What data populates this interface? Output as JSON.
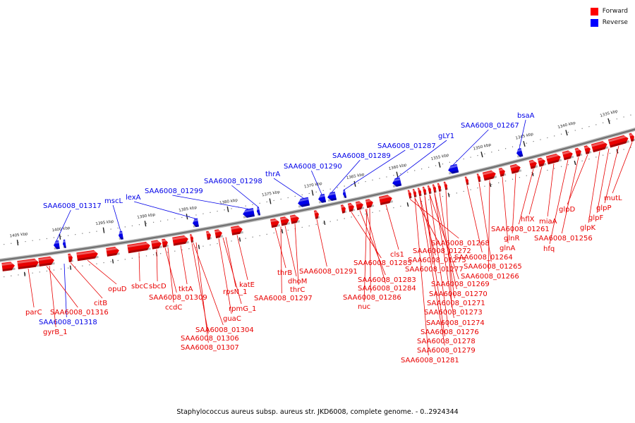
{
  "caption": "Staphylococcus aureus subsp. aureus str. JKD6008, complete genome. - 0..2924344",
  "legend": [
    {
      "label": "Forward",
      "color": "#ff0000"
    },
    {
      "label": "Reverse",
      "color": "#0000ff"
    }
  ],
  "colors": {
    "forward": "#e80000",
    "reverse": "#0000e8",
    "backbone": "#707070"
  },
  "ticks": [
    "1405 kbp",
    "1400 kbp",
    "1395 kbp",
    "1390 kbp",
    "1385 kbp",
    "1380 kbp",
    "1375 kbp",
    "1370 kbp",
    "1365 kbp",
    "1360 kbp",
    "1355 kbp",
    "1350 kbp",
    "1345 kbp",
    "1340 kbp",
    "1335 kbp"
  ],
  "reverse_labels": [
    "SAA6008_01317",
    "mscL",
    "lexA",
    "SAA6008_01299",
    "SAA6008_01298",
    "thrA",
    "SAA6008_01290",
    "SAA6008_01289",
    "SAA6008_01287",
    "gLY1",
    "SAA6008_01267",
    "bsaA",
    "SAA6008_01318"
  ],
  "forward_labels": [
    "parC",
    "SAA6008_01316",
    "gyrB_1",
    "citB",
    "opuD",
    "sbcC",
    "sbcD",
    "tktA",
    "SAA6008_01309",
    "ccdC",
    "SAA6008_01304",
    "SAA6008_01306",
    "SAA6008_01307",
    "guaC",
    "rpmG_1",
    "rpsN_1",
    "katE",
    "thrB",
    "dhoM",
    "thrC",
    "SAA6008_01297",
    "SAA6008_01291",
    "SAA6008_01285",
    "SAA6008_01283",
    "SAA6008_01284",
    "SAA6008_01286",
    "nuc",
    "cls1",
    "SAA6008_01268",
    "SAA6008_01272",
    "SAA6008_01275",
    "SAA6008_01277",
    "SAA6008_01269",
    "SAA6008_01270",
    "SAA6008_01271",
    "SAA6008_01273",
    "SAA6008_01274",
    "SAA6008_01276",
    "SAA6008_01278",
    "SAA6008_01279",
    "SAA6008_01281",
    "SAA6008_01264",
    "SAA6008_01265",
    "SAA6008_01266",
    "glnA",
    "glnR",
    "SAA6008_01261",
    "hflX",
    "miaA",
    "hfq",
    "SAA6008_01256",
    "glpD",
    "glpK",
    "glpF",
    "glpP",
    "mutL"
  ]
}
